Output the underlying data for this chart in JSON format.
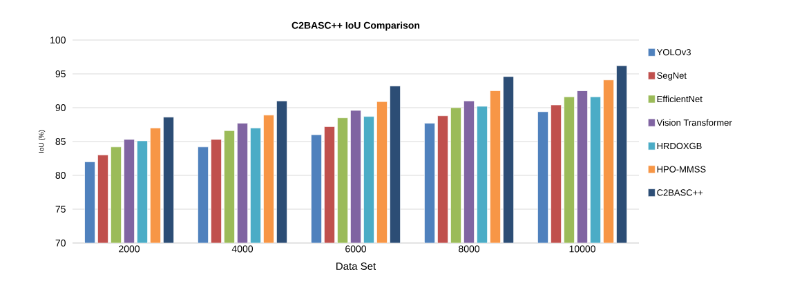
{
  "chart_data": {
    "type": "bar",
    "title": "C2BASC++ IoU Comparison",
    "xlabel": "Data Set",
    "ylabel": "IoU (%)",
    "categories": [
      "2000",
      "4000",
      "6000",
      "8000",
      "10000"
    ],
    "series": [
      {
        "name": "YOLOv3",
        "color": "#4f81bd",
        "values": [
          82.0,
          84.2,
          86.0,
          87.7,
          89.4
        ]
      },
      {
        "name": "SegNet",
        "color": "#c0504d",
        "values": [
          83.0,
          85.3,
          87.2,
          88.8,
          90.4
        ]
      },
      {
        "name": "EfficientNet",
        "color": "#9bbb59",
        "values": [
          84.2,
          86.6,
          88.5,
          90.0,
          91.6
        ]
      },
      {
        "name": "Vision Transformer",
        "color": "#8064a2",
        "values": [
          85.3,
          87.7,
          89.6,
          91.0,
          92.5
        ]
      },
      {
        "name": "HRDOXGB",
        "color": "#4bacc6",
        "values": [
          85.1,
          87.0,
          88.7,
          90.2,
          91.6
        ]
      },
      {
        "name": "HPO-MMSS",
        "color": "#f79646",
        "values": [
          87.0,
          88.9,
          90.9,
          92.5,
          94.1
        ]
      },
      {
        "name": "C2BASC++",
        "color": "#2c4d75",
        "values": [
          88.6,
          91.0,
          93.2,
          94.6,
          96.2
        ]
      }
    ],
    "ylim": [
      70,
      100
    ],
    "yticks": [
      70,
      75,
      80,
      85,
      90,
      95,
      100
    ],
    "grid": "y",
    "legend": "right"
  }
}
